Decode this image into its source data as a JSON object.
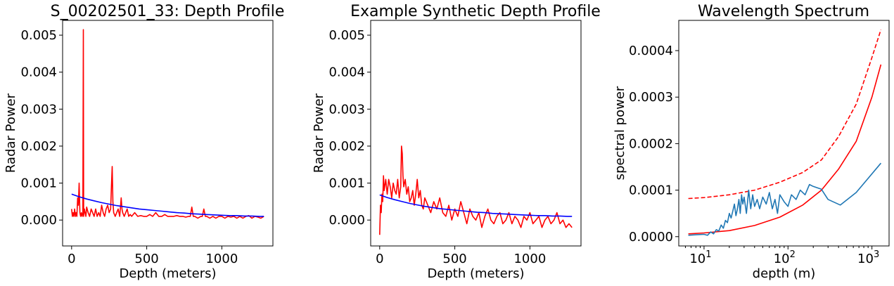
{
  "figure": {
    "background": "#ffffff"
  },
  "chart_data": [
    {
      "type": "line",
      "title": "S_00202501_33: Depth Profile",
      "xlabel": "Depth (meters)",
      "ylabel": "Radar Power",
      "xlim": [
        -60,
        1340
      ],
      "ylim": [
        -0.0007,
        0.0054
      ],
      "xticks": [
        {
          "v": 0,
          "label": "0"
        },
        {
          "v": 500,
          "label": "500"
        },
        {
          "v": 1000,
          "label": "1000"
        }
      ],
      "yticks": [
        {
          "v": 0,
          "label": "0.000"
        },
        {
          "v": 0.001,
          "label": "0.001"
        },
        {
          "v": 0.002,
          "label": "0.002"
        },
        {
          "v": 0.003,
          "label": "0.003"
        },
        {
          "v": 0.004,
          "label": "0.004"
        },
        {
          "v": 0.005,
          "label": "0.005"
        }
      ],
      "series": [
        {
          "color": "#ff0000",
          "x": [
            0,
            5,
            10,
            15,
            20,
            25,
            30,
            35,
            40,
            45,
            50,
            55,
            60,
            65,
            70,
            75,
            78,
            80,
            85,
            90,
            95,
            100,
            110,
            120,
            130,
            140,
            150,
            160,
            170,
            180,
            190,
            200,
            210,
            220,
            230,
            240,
            250,
            260,
            265,
            270,
            275,
            280,
            290,
            300,
            310,
            320,
            330,
            335,
            340,
            350,
            360,
            370,
            380,
            390,
            400,
            420,
            440,
            460,
            480,
            500,
            520,
            540,
            560,
            580,
            600,
            620,
            640,
            660,
            680,
            700,
            720,
            740,
            760,
            780,
            790,
            800,
            810,
            820,
            840,
            860,
            870,
            880,
            890,
            900,
            920,
            940,
            960,
            980,
            1000,
            1020,
            1040,
            1060,
            1080,
            1100,
            1120,
            1140,
            1160,
            1180,
            1200,
            1220,
            1240,
            1260,
            1280
          ],
          "y": [
            0.0003,
            0.0001,
            0.0002,
            0.0001,
            0.0003,
            0.0001,
            0.0002,
            0.0001,
            0.0006,
            0.0004,
            0.001,
            0.0002,
            0.0001,
            0.0002,
            0.0001,
            0.0002,
            0.00515,
            0.0001,
            0.0003,
            0.0002,
            0.0001,
            0.00035,
            0.0002,
            0.0001,
            0.0003,
            0.0002,
            0.0001,
            0.0003,
            0.0001,
            0.0002,
            0.0001,
            0.0004,
            0.0002,
            0.0001,
            0.0003,
            0.0004,
            0.0002,
            0.0003,
            0.0009,
            0.00145,
            0.0005,
            0.0002,
            0.0001,
            0.0002,
            0.0003,
            0.0001,
            0.0006,
            0.0003,
            0.0002,
            0.0001,
            0.0002,
            0.0003,
            0.0001,
            0.00015,
            0.0001,
            0.0002,
            0.0001,
            0.00012,
            0.0001,
            0.0001,
            0.00015,
            0.0001,
            0.0002,
            0.0001,
            0.0001,
            0.00015,
            0.0001,
            0.0001,
            0.0001,
            0.00012,
            0.0001,
            0.0001,
            8e-05,
            0.0001,
            0.0001,
            0.00035,
            0.0001,
            0.0001,
            5e-05,
            0.0001,
            0.0001,
            0.0003,
            0.0001,
            0.0001,
            5e-05,
            0.0001,
            5e-05,
            0.0001,
            0.0001,
            5e-05,
            0.0001,
            8e-05,
            0.0001,
            5e-05,
            0.0001,
            5e-05,
            0.0001,
            0.00012,
            5e-05,
            0.0001,
            8e-05,
            5e-05,
            0.0001
          ]
        },
        {
          "color": "#0000ff",
          "x": [
            0,
            50,
            100,
            150,
            200,
            250,
            300,
            350,
            400,
            450,
            500,
            550,
            600,
            650,
            700,
            750,
            800,
            850,
            900,
            950,
            1000,
            1050,
            1100,
            1150,
            1200,
            1250,
            1280
          ],
          "y": [
            0.0007,
            0.00063,
            0.00057,
            0.00052,
            0.00047,
            0.00043,
            0.00039,
            0.00036,
            0.00033,
            0.0003,
            0.00028,
            0.00026,
            0.00024,
            0.00022,
            0.0002,
            0.00019,
            0.00017,
            0.00016,
            0.00015,
            0.00014,
            0.00013,
            0.00012,
            0.00012,
            0.00011,
            0.00011,
            0.0001,
            0.0001
          ]
        }
      ]
    },
    {
      "type": "line",
      "title": "Example Synthetic Depth Profile",
      "xlabel": "Depth (meters)",
      "ylabel": "Radar Power",
      "xlim": [
        -60,
        1340
      ],
      "ylim": [
        -0.0007,
        0.0054
      ],
      "xticks": [
        {
          "v": 0,
          "label": "0"
        },
        {
          "v": 500,
          "label": "500"
        },
        {
          "v": 1000,
          "label": "1000"
        }
      ],
      "yticks": [
        {
          "v": 0,
          "label": "0.000"
        },
        {
          "v": 0.001,
          "label": "0.001"
        },
        {
          "v": 0.002,
          "label": "0.002"
        },
        {
          "v": 0.003,
          "label": "0.003"
        },
        {
          "v": 0.004,
          "label": "0.004"
        },
        {
          "v": 0.005,
          "label": "0.005"
        }
      ],
      "series": [
        {
          "color": "#ff0000",
          "x": [
            0,
            5,
            10,
            15,
            20,
            25,
            30,
            40,
            50,
            60,
            70,
            80,
            90,
            100,
            110,
            120,
            130,
            140,
            145,
            150,
            155,
            160,
            170,
            180,
            190,
            200,
            210,
            220,
            230,
            240,
            250,
            260,
            270,
            280,
            290,
            300,
            320,
            340,
            360,
            380,
            400,
            420,
            440,
            460,
            480,
            500,
            520,
            540,
            560,
            580,
            600,
            620,
            640,
            660,
            680,
            700,
            720,
            740,
            760,
            780,
            800,
            820,
            840,
            860,
            880,
            900,
            920,
            940,
            960,
            980,
            1000,
            1020,
            1040,
            1060,
            1080,
            1100,
            1120,
            1140,
            1160,
            1180,
            1200,
            1220,
            1240,
            1260,
            1280
          ],
          "y": [
            -0.0004,
            0.0004,
            0.0002,
            0.0007,
            0.0005,
            0.0012,
            0.0008,
            0.0011,
            0.0007,
            0.0011,
            0.0009,
            0.0006,
            0.001,
            0.0008,
            0.0007,
            0.0011,
            0.0006,
            0.0009,
            0.002,
            0.0018,
            0.0012,
            0.0009,
            0.0011,
            0.0007,
            0.0009,
            0.0005,
            0.0006,
            0.0008,
            0.0004,
            0.0007,
            0.0011,
            0.0006,
            0.0008,
            0.0004,
            0.0003,
            0.0006,
            0.0004,
            0.0002,
            0.0005,
            0.0003,
            0.0006,
            0.0002,
            0.0001,
            0.0004,
            0.0,
            0.0003,
            0.0001,
            0.0005,
            0.0002,
            -0.0001,
            0.0003,
            0.0001,
            0.0,
            0.0002,
            -0.0002,
            0.0001,
            0.0003,
            0.0,
            -0.0001,
            0.0001,
            0.0002,
            -0.0001,
            0.0,
            0.0002,
            -0.0001,
            0.0001,
            0.0,
            -0.0002,
            0.0001,
            0.0,
            0.0002,
            -0.0001,
            0.0,
            0.0001,
            -0.0002,
            0.0,
            0.0001,
            -0.0001,
            0.0,
            0.0002,
            -0.0001,
            0.0,
            -0.0002,
            -0.0001,
            -0.0002
          ]
        },
        {
          "color": "#0000ff",
          "x": [
            0,
            50,
            100,
            150,
            200,
            250,
            300,
            350,
            400,
            450,
            500,
            550,
            600,
            650,
            700,
            750,
            800,
            850,
            900,
            950,
            1000,
            1050,
            1100,
            1150,
            1200,
            1250,
            1280
          ],
          "y": [
            0.00068,
            0.00061,
            0.00055,
            0.0005,
            0.00045,
            0.00041,
            0.00037,
            0.00034,
            0.00031,
            0.00029,
            0.00027,
            0.00025,
            0.00023,
            0.00021,
            0.0002,
            0.00018,
            0.00017,
            0.00016,
            0.00015,
            0.00014,
            0.00013,
            0.00012,
            0.00012,
            0.00011,
            0.00011,
            0.0001,
            0.0001
          ]
        }
      ]
    },
    {
      "type": "line",
      "title": "Wavelength Spectrum",
      "xlabel": "depth (m)",
      "ylabel": "spectral power",
      "xscale": "log",
      "xlim": [
        5,
        1600
      ],
      "ylim": [
        -2e-05,
        0.000465
      ],
      "xticks": [
        {
          "v": 10,
          "label": "10",
          "exp": "1"
        },
        {
          "v": 100,
          "label": "10",
          "exp": "2"
        },
        {
          "v": 1000,
          "label": "10",
          "exp": "3"
        }
      ],
      "yticks": [
        {
          "v": 0,
          "label": "0.0000"
        },
        {
          "v": 0.0001,
          "label": "0.0001"
        },
        {
          "v": 0.0002,
          "label": "0.0002"
        },
        {
          "v": 0.0003,
          "label": "0.0003"
        },
        {
          "v": 0.0004,
          "label": "0.0004"
        }
      ],
      "series": [
        {
          "color": "#ff0000",
          "dash": "dashed",
          "x": [
            6.5,
            10,
            20,
            40,
            80,
            150,
            250,
            400,
            650,
            1000,
            1280
          ],
          "y": [
            8.2e-05,
            8.4e-05,
            9e-05,
            0.0001,
            0.000117,
            0.000138,
            0.000165,
            0.000215,
            0.000285,
            0.000385,
            0.000445
          ]
        },
        {
          "color": "#ff0000",
          "dash": "solid",
          "x": [
            6.5,
            10,
            20,
            40,
            80,
            150,
            250,
            400,
            650,
            1000,
            1280
          ],
          "y": [
            6e-06,
            8e-06,
            1.3e-05,
            2.4e-05,
            4.2e-05,
            6.8e-05,
            0.0001,
            0.000145,
            0.000205,
            0.0003,
            0.00037
          ]
        },
        {
          "color": "#1f77b4",
          "dash": "solid",
          "x": [
            6.5,
            8,
            10,
            11,
            12,
            13,
            14,
            15,
            16,
            17,
            18,
            19,
            20,
            21,
            22,
            23,
            24,
            25,
            26,
            27,
            28,
            29,
            30,
            32,
            34,
            36,
            38,
            40,
            43,
            46,
            50,
            55,
            60,
            65,
            70,
            75,
            80,
            90,
            100,
            110,
            125,
            140,
            160,
            180,
            200,
            250,
            300,
            420,
            650,
            1280
          ],
          "y": [
            3e-06,
            4e-06,
            5e-06,
            3e-06,
            1e-05,
            6e-06,
            1.5e-05,
            1.2e-05,
            2.5e-05,
            1.8e-05,
            3.5e-05,
            3e-05,
            5e-05,
            4e-05,
            5.5e-05,
            7e-05,
            4.5e-05,
            6e-05,
            8e-05,
            5e-05,
            9e-05,
            7e-05,
            8.5e-05,
            5e-05,
            0.0001,
            6e-05,
            9e-05,
            6.5e-05,
            8e-05,
            6e-05,
            8.5e-05,
            7e-05,
            9.5e-05,
            6e-05,
            8e-05,
            5e-05,
            9e-05,
            7.5e-05,
            6.5e-05,
            9e-05,
            8e-05,
            0.0001,
            9e-05,
            0.000112,
            0.000108,
            0.000102,
            8e-05,
            6.8e-05,
            9.5e-05,
            0.000158
          ]
        }
      ]
    }
  ]
}
